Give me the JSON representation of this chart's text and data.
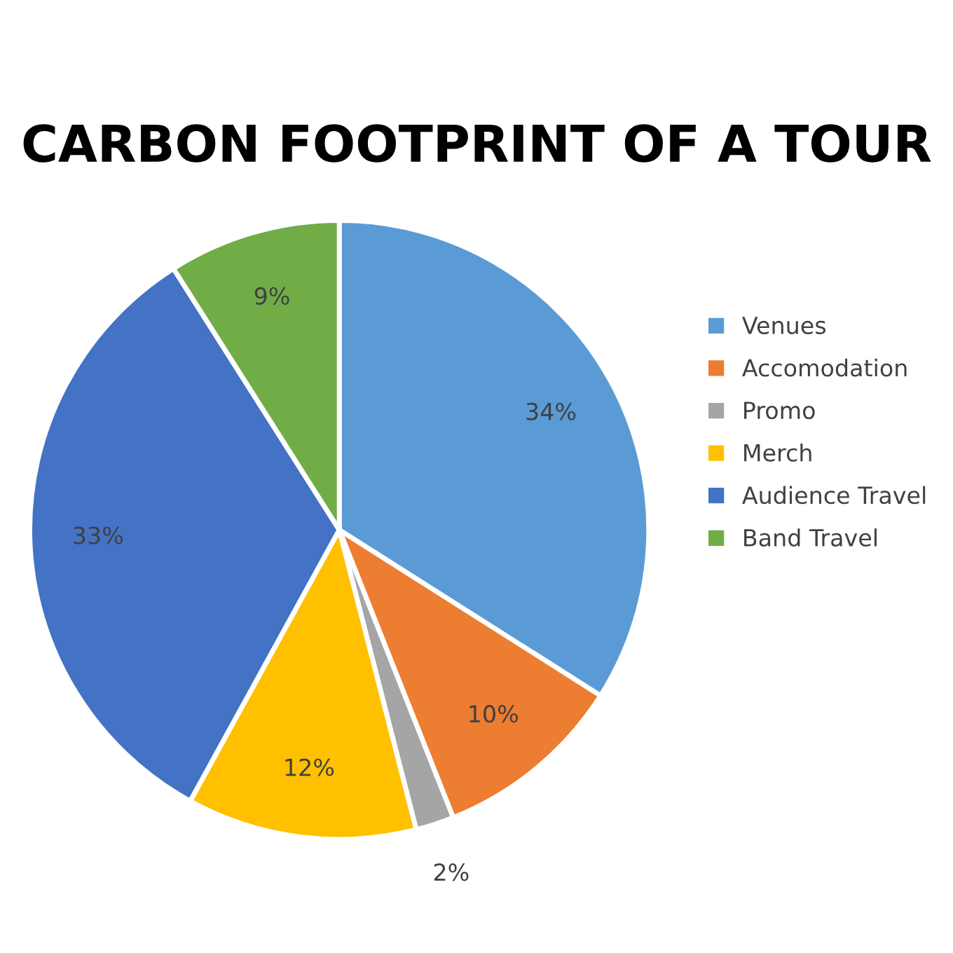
{
  "chart_data": {
    "type": "pie",
    "title": "CARBON FOOTPRINT OF A TOUR",
    "categories": [
      "Venues",
      "Accomodation",
      "Promo",
      "Merch",
      "Audience Travel",
      "Band Travel"
    ],
    "values": [
      34,
      10,
      2,
      12,
      33,
      9
    ],
    "value_labels": [
      "34%",
      "10%",
      "2%",
      "12%",
      "33%",
      "9%"
    ],
    "colors": [
      "#5b9bd5",
      "#ed7d31",
      "#a5a5a5",
      "#ffc000",
      "#4472c4",
      "#70ad47"
    ],
    "legend": "right"
  }
}
